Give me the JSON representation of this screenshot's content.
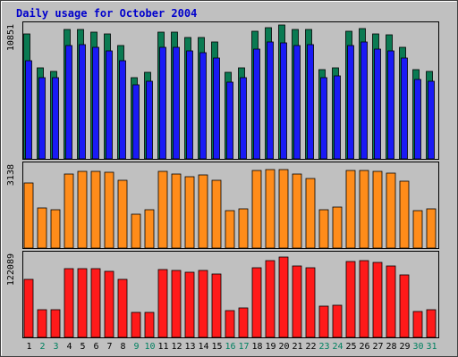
{
  "chart_data": {
    "type": "bar",
    "title": "Daily usage for October 2004",
    "categories": [
      "1",
      "2",
      "3",
      "4",
      "5",
      "6",
      "7",
      "8",
      "9",
      "10",
      "11",
      "12",
      "13",
      "14",
      "15",
      "16",
      "17",
      "18",
      "19",
      "20",
      "21",
      "22",
      "23",
      "24",
      "25",
      "26",
      "27",
      "28",
      "29",
      "30",
      "31"
    ],
    "weekend_days": [
      "2",
      "3",
      "9",
      "10",
      "16",
      "17",
      "23",
      "24",
      "30",
      "31"
    ],
    "panels": [
      {
        "label": "10851",
        "max": 10851,
        "series": [
          {
            "values": [
              10300,
              7500,
              7200,
              10600,
              10600,
              10400,
              10300,
              9300,
              6700,
              7100,
              10400,
              10400,
              10000,
              10000,
              9600,
              7100,
              7500,
              10500,
              10800,
              11000,
              10600,
              10600,
              7300,
              7500,
              10500,
              10700,
              10300,
              10200,
              9200,
              7300,
              7200
            ],
            "color": "#0a7a52"
          },
          {
            "values": [
              8100,
              6700,
              6700,
              9300,
              9400,
              9200,
              8900,
              8100,
              6100,
              6400,
              9200,
              9200,
              8900,
              8700,
              8300,
              6300,
              6700,
              9000,
              9600,
              9500,
              9300,
              9400,
              6700,
              6800,
              9300,
              9600,
              9000,
              8900,
              8300,
              6500,
              6400
            ],
            "color": "#1a1af5"
          }
        ]
      },
      {
        "label": "3138",
        "max": 3138,
        "series": [
          {
            "values": [
              2520,
              1535,
              1500,
              2850,
              2960,
              2960,
              2930,
              2610,
              1320,
              1480,
              2960,
              2860,
              2770,
              2830,
              2620,
              1450,
              1520,
              2990,
              3020,
              3020,
              2870,
              2690,
              1490,
              1590,
              2990,
              3010,
              2970,
              2900,
              2570,
              1450,
              1520
            ],
            "color": "#ff8c1a"
          }
        ]
      },
      {
        "label": "122089",
        "max": 122089,
        "series": [
          {
            "values": [
              87000,
              41000,
              41000,
              103000,
              103500,
              103500,
              99000,
              87500,
              37000,
              38000,
              101500,
              100000,
              98500,
              100000,
              95000,
              40000,
              44000,
              105000,
              116000,
              121000,
              107000,
              104000,
              47000,
              48000,
              114000,
              116000,
              113000,
              107000,
              94000,
              39000,
              41000
            ],
            "color": "#ff1a1a"
          }
        ]
      }
    ],
    "colors": {
      "background": "#c0c0c0",
      "title": "#0000cc",
      "weekday_label": "#000000",
      "weekend_label": "#008060"
    }
  }
}
